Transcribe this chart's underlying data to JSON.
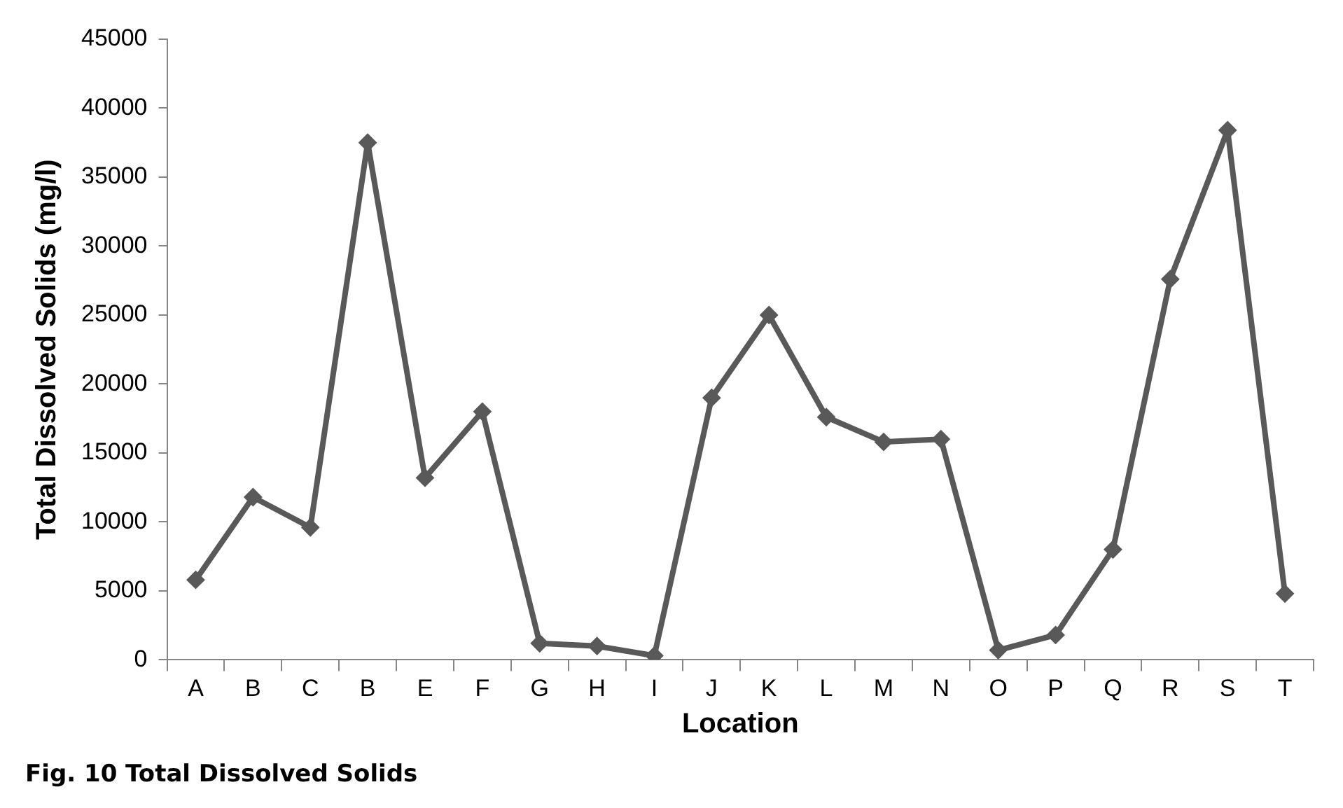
{
  "chart_data": {
    "type": "line",
    "title": "Fig. 10 Total Dissolved Solids",
    "xlabel": "Location",
    "ylabel": "Total Dissolved Solids (mg/l)",
    "categories": [
      "A",
      "B",
      "C",
      "B",
      "E",
      "F",
      "G",
      "H",
      "I",
      "J",
      "K",
      "L",
      "M",
      "N",
      "O",
      "P",
      "Q",
      "R",
      "S",
      "T"
    ],
    "series": [
      {
        "color": "#595959",
        "values": [
          5800,
          11800,
          9600,
          37500,
          13200,
          18000,
          1200,
          1000,
          300,
          19000,
          25000,
          17600,
          15800,
          16000,
          700,
          1800,
          8000,
          27600,
          38400,
          4800
        ]
      }
    ],
    "ylim": [
      0,
      45000
    ],
    "yticks": [
      0,
      5000,
      10000,
      15000,
      20000,
      25000,
      30000,
      35000,
      40000,
      45000
    ],
    "grid": false,
    "legend": false,
    "marker": "diamond",
    "line_style": "solid"
  }
}
